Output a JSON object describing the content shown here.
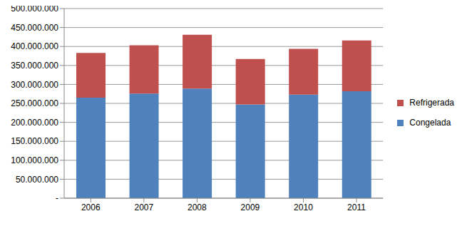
{
  "chart_data": {
    "type": "bar",
    "stacked": true,
    "grid": true,
    "legend": "right",
    "categories": [
      "2006",
      "2007",
      "2008",
      "2009",
      "2010",
      "2011"
    ],
    "series": [
      {
        "name": "Congelada",
        "color": "#4F81BD",
        "values": [
          265000000,
          276000000,
          289000000,
          247000000,
          273000000,
          282000000
        ]
      },
      {
        "name": "Refrigerada",
        "color": "#C0504D",
        "values": [
          118000000,
          127000000,
          142000000,
          120000000,
          121000000,
          134000000
        ]
      }
    ],
    "ylim": [
      0,
      500000000
    ],
    "yticks": [
      {
        "value": 0,
        "label": "-"
      },
      {
        "value": 50000000,
        "label": "50.000.000"
      },
      {
        "value": 100000000,
        "label": "100.000.000"
      },
      {
        "value": 150000000,
        "label": "150.000.000"
      },
      {
        "value": 200000000,
        "label": "200.000.000"
      },
      {
        "value": 250000000,
        "label": "250.000.000"
      },
      {
        "value": 300000000,
        "label": "300.000.000"
      },
      {
        "value": 350000000,
        "label": "350.000.000"
      },
      {
        "value": 400000000,
        "label": "400.000.000"
      },
      {
        "value": 450000000,
        "label": "450.000.000"
      },
      {
        "value": 500000000,
        "label": "500.000.000"
      }
    ]
  }
}
